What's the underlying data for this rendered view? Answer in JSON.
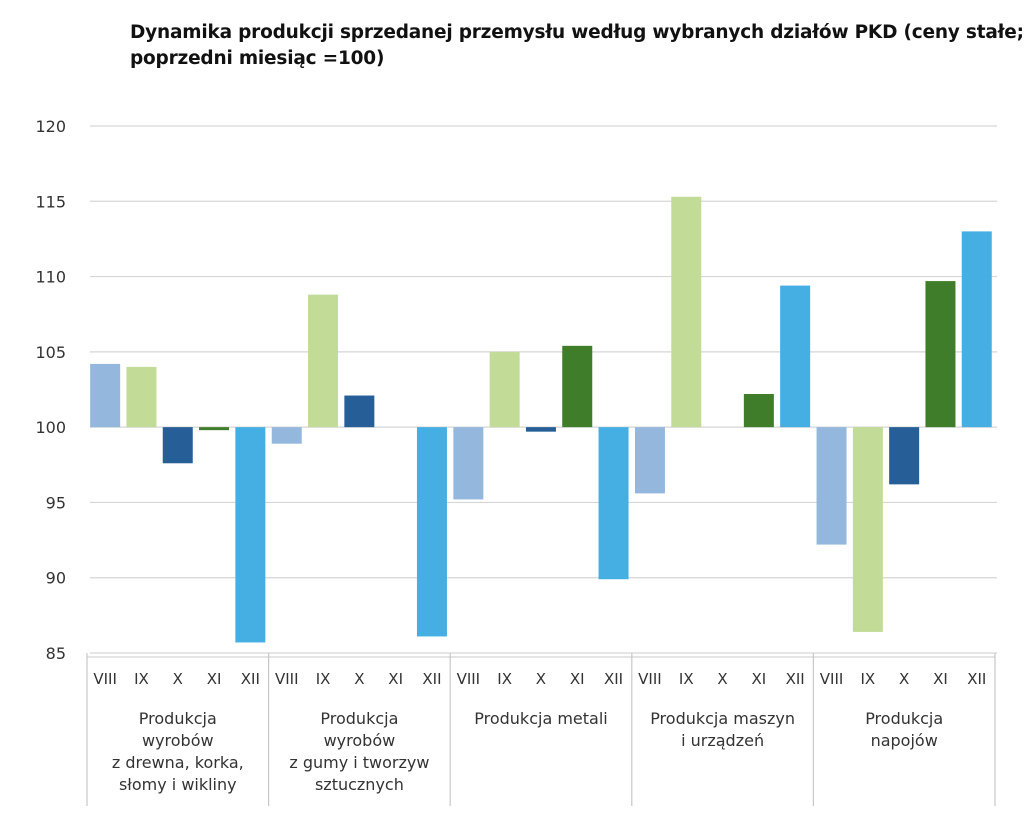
{
  "chart_data": {
    "type": "bar",
    "title_lines": [
      "Dynamika produkcji sprzedanej przemysłu według wybranych działów PKD (ceny stałe;",
      "poprzedni miesiąc =100)"
    ],
    "xlabel": "",
    "ylabel": "",
    "ylim": [
      85,
      120
    ],
    "yticks": [
      85,
      90,
      95,
      100,
      105,
      110,
      115,
      120
    ],
    "baseline": 100,
    "grid": true,
    "months": [
      "VIII",
      "IX",
      "X",
      "XI",
      "XII"
    ],
    "month_colors": [
      "#94b8dd",
      "#c2dc98",
      "#265f97",
      "#3f7d2a",
      "#45aee3"
    ],
    "groups": [
      {
        "label_lines": [
          "Produkcja",
          "wyrobów",
          "z drewna, korka,",
          "słomy i wikliny"
        ],
        "values": [
          104.2,
          104.0,
          97.6,
          99.8,
          85.7
        ]
      },
      {
        "label_lines": [
          "Produkcja",
          "wyrobów",
          "z gumy i tworzyw",
          "sztucznych"
        ],
        "values": [
          98.9,
          108.8,
          102.1,
          100.0,
          86.1
        ]
      },
      {
        "label_lines": [
          "Produkcja metali"
        ],
        "values": [
          95.2,
          105.0,
          99.7,
          105.4,
          89.9
        ]
      },
      {
        "label_lines": [
          "Produkcja maszyn",
          "i urządzeń"
        ],
        "values": [
          95.6,
          115.3,
          100.0,
          102.2,
          109.4
        ]
      },
      {
        "label_lines": [
          "Produkcja",
          "napojów"
        ],
        "values": [
          92.2,
          86.4,
          96.2,
          109.7,
          113.0
        ]
      }
    ]
  }
}
